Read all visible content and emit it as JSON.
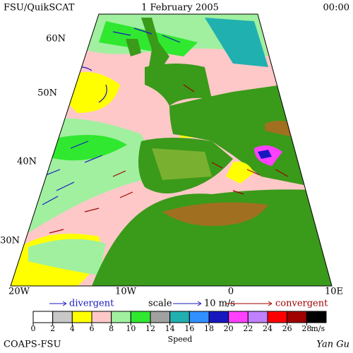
{
  "header": {
    "source": "FSU/QuikSCAT",
    "date": "1 February 2005",
    "time": "00:00"
  },
  "map": {
    "lat_labels": [
      "60N",
      "50N",
      "40N",
      "30N"
    ],
    "lon_labels": [
      "20W",
      "10W",
      "0",
      "10E"
    ]
  },
  "legend": {
    "divergent": "divergent",
    "scale": "scale",
    "scale_value": "10 m/s",
    "convergent": "convergent"
  },
  "colorbar": {
    "ticks": [
      0,
      2,
      4,
      6,
      8,
      10,
      12,
      14,
      16,
      18,
      20,
      22,
      24,
      26,
      28
    ],
    "unit": "m/s",
    "label": "Speed",
    "colors": [
      "#ffffff",
      "#c8c8c8",
      "#ffff00",
      "#ffc8c8",
      "#a0f0a0",
      "#30e830",
      "#a0a0a0",
      "#20b0b0",
      "#3090ff",
      "#1818c0",
      "#ff40ff",
      "#c080ff",
      "#ff0000",
      "#a00000",
      "#000000"
    ]
  },
  "footer": {
    "left": "COAPS-FSU",
    "right": "Yan Gu"
  }
}
